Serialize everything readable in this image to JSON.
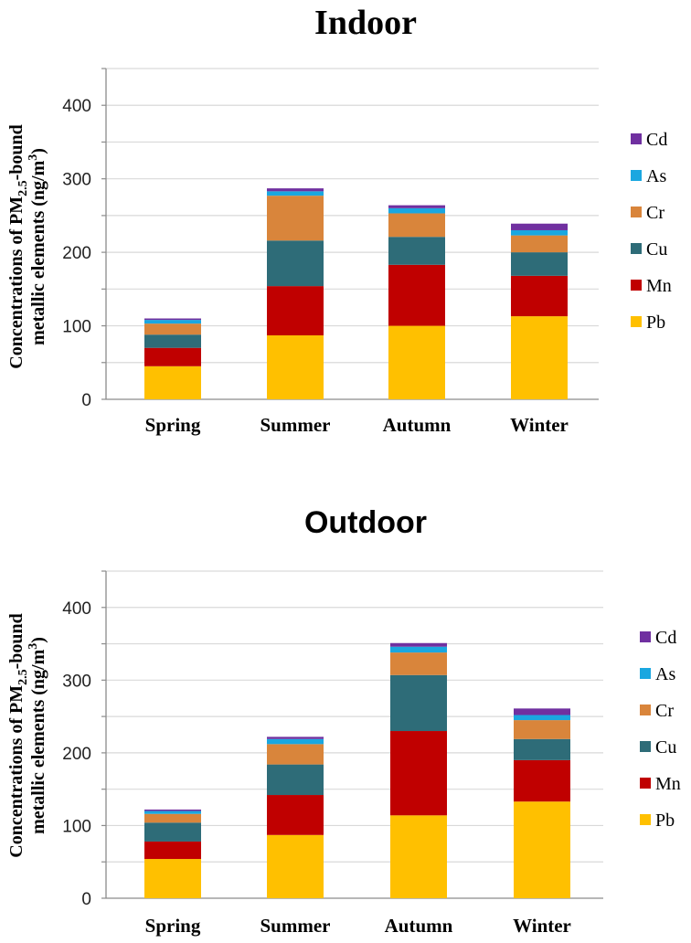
{
  "chart_data": [
    {
      "type": "bar",
      "stacked": true,
      "title": "Indoor",
      "ylabel": {
        "line1_prefix": "Concentrations of PM",
        "sub": "2.5",
        "line1_suffix": "-bound",
        "line2_prefix": "metallic elements (ng/m",
        "sup": "3",
        "line2_suffix": ")"
      },
      "ylim": [
        0,
        450
      ],
      "yticks": [
        0,
        100,
        200,
        300,
        400
      ],
      "grid": true,
      "legend": "right",
      "categories": [
        "Spring",
        "Summer",
        "Autumn",
        "Winter"
      ],
      "series": [
        {
          "name": "Pb",
          "color": "#FFC000",
          "values": [
            45,
            87,
            100,
            113
          ]
        },
        {
          "name": "Mn",
          "color": "#C00000",
          "values": [
            25,
            67,
            83,
            55
          ]
        },
        {
          "name": "Cu",
          "color": "#2E6C78",
          "values": [
            18,
            62,
            38,
            32
          ]
        },
        {
          "name": "Cr",
          "color": "#D9853B",
          "values": [
            15,
            61,
            32,
            23
          ]
        },
        {
          "name": "As",
          "color": "#1AA7E0",
          "values": [
            5,
            6,
            7,
            7
          ]
        },
        {
          "name": "Cd",
          "color": "#7030A0",
          "values": [
            2,
            4,
            4,
            9
          ]
        }
      ]
    },
    {
      "type": "bar",
      "stacked": true,
      "title": "Outdoor",
      "ylabel": {
        "line1_prefix": "Concentrations of PM",
        "sub": "2.5",
        "line1_suffix": "-bound",
        "line2_prefix": "metallic elements (ng/m",
        "sup": "3",
        "line2_suffix": ")"
      },
      "ylim": [
        0,
        450
      ],
      "yticks": [
        0,
        100,
        200,
        300,
        400
      ],
      "grid": true,
      "legend": "right",
      "categories": [
        "Spring",
        "Summer",
        "Autumn",
        "Winter"
      ],
      "series": [
        {
          "name": "Pb",
          "color": "#FFC000",
          "values": [
            54,
            87,
            114,
            133
          ]
        },
        {
          "name": "Mn",
          "color": "#C00000",
          "values": [
            24,
            55,
            116,
            57
          ]
        },
        {
          "name": "Cu",
          "color": "#2E6C78",
          "values": [
            26,
            42,
            77,
            29
          ]
        },
        {
          "name": "Cr",
          "color": "#D9853B",
          "values": [
            12,
            28,
            31,
            26
          ]
        },
        {
          "name": "As",
          "color": "#1AA7E0",
          "values": [
            4,
            7,
            8,
            7
          ]
        },
        {
          "name": "Cd",
          "color": "#7030A0",
          "values": [
            2,
            3,
            5,
            9
          ]
        }
      ]
    }
  ]
}
